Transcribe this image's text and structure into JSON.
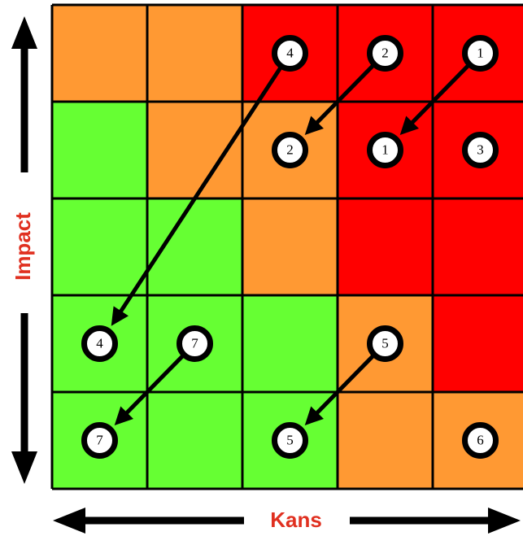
{
  "axes": {
    "y_label": "Impact",
    "x_label": "Kans"
  },
  "colors": {
    "green": "#66ff33",
    "orange": "#ff9933",
    "red": "#ff0000",
    "grid_line": "#000000",
    "label": "#e03020"
  },
  "grid": {
    "rows": 5,
    "cols": 5,
    "cell_colors": [
      [
        "orange",
        "orange",
        "red",
        "red",
        "red"
      ],
      [
        "green",
        "orange",
        "orange",
        "red",
        "red"
      ],
      [
        "green",
        "green",
        "orange",
        "red",
        "red"
      ],
      [
        "green",
        "green",
        "green",
        "orange",
        "red"
      ],
      [
        "green",
        "green",
        "green",
        "orange",
        "orange"
      ]
    ]
  },
  "markers": [
    {
      "id": "4",
      "col": 3,
      "row": 1
    },
    {
      "id": "2",
      "col": 4,
      "row": 1
    },
    {
      "id": "1",
      "col": 5,
      "row": 1
    },
    {
      "id": "2",
      "col": 3,
      "row": 2
    },
    {
      "id": "1",
      "col": 4,
      "row": 2
    },
    {
      "id": "3",
      "col": 5,
      "row": 2
    },
    {
      "id": "4",
      "col": 1,
      "row": 4
    },
    {
      "id": "7",
      "col": 2,
      "row": 4
    },
    {
      "id": "5",
      "col": 4,
      "row": 4
    },
    {
      "id": "7",
      "col": 1,
      "row": 5
    },
    {
      "id": "5",
      "col": 3,
      "row": 5
    },
    {
      "id": "6",
      "col": 5,
      "row": 5
    }
  ],
  "movements": [
    {
      "risk": "4",
      "from": [
        3,
        1
      ],
      "to": [
        1,
        4
      ]
    },
    {
      "risk": "2",
      "from": [
        4,
        1
      ],
      "to": [
        3,
        2
      ]
    },
    {
      "risk": "1",
      "from": [
        5,
        1
      ],
      "to": [
        4,
        2
      ]
    },
    {
      "risk": "7",
      "from": [
        2,
        4
      ],
      "to": [
        1,
        5
      ]
    },
    {
      "risk": "5",
      "from": [
        4,
        4
      ],
      "to": [
        3,
        5
      ]
    }
  ]
}
